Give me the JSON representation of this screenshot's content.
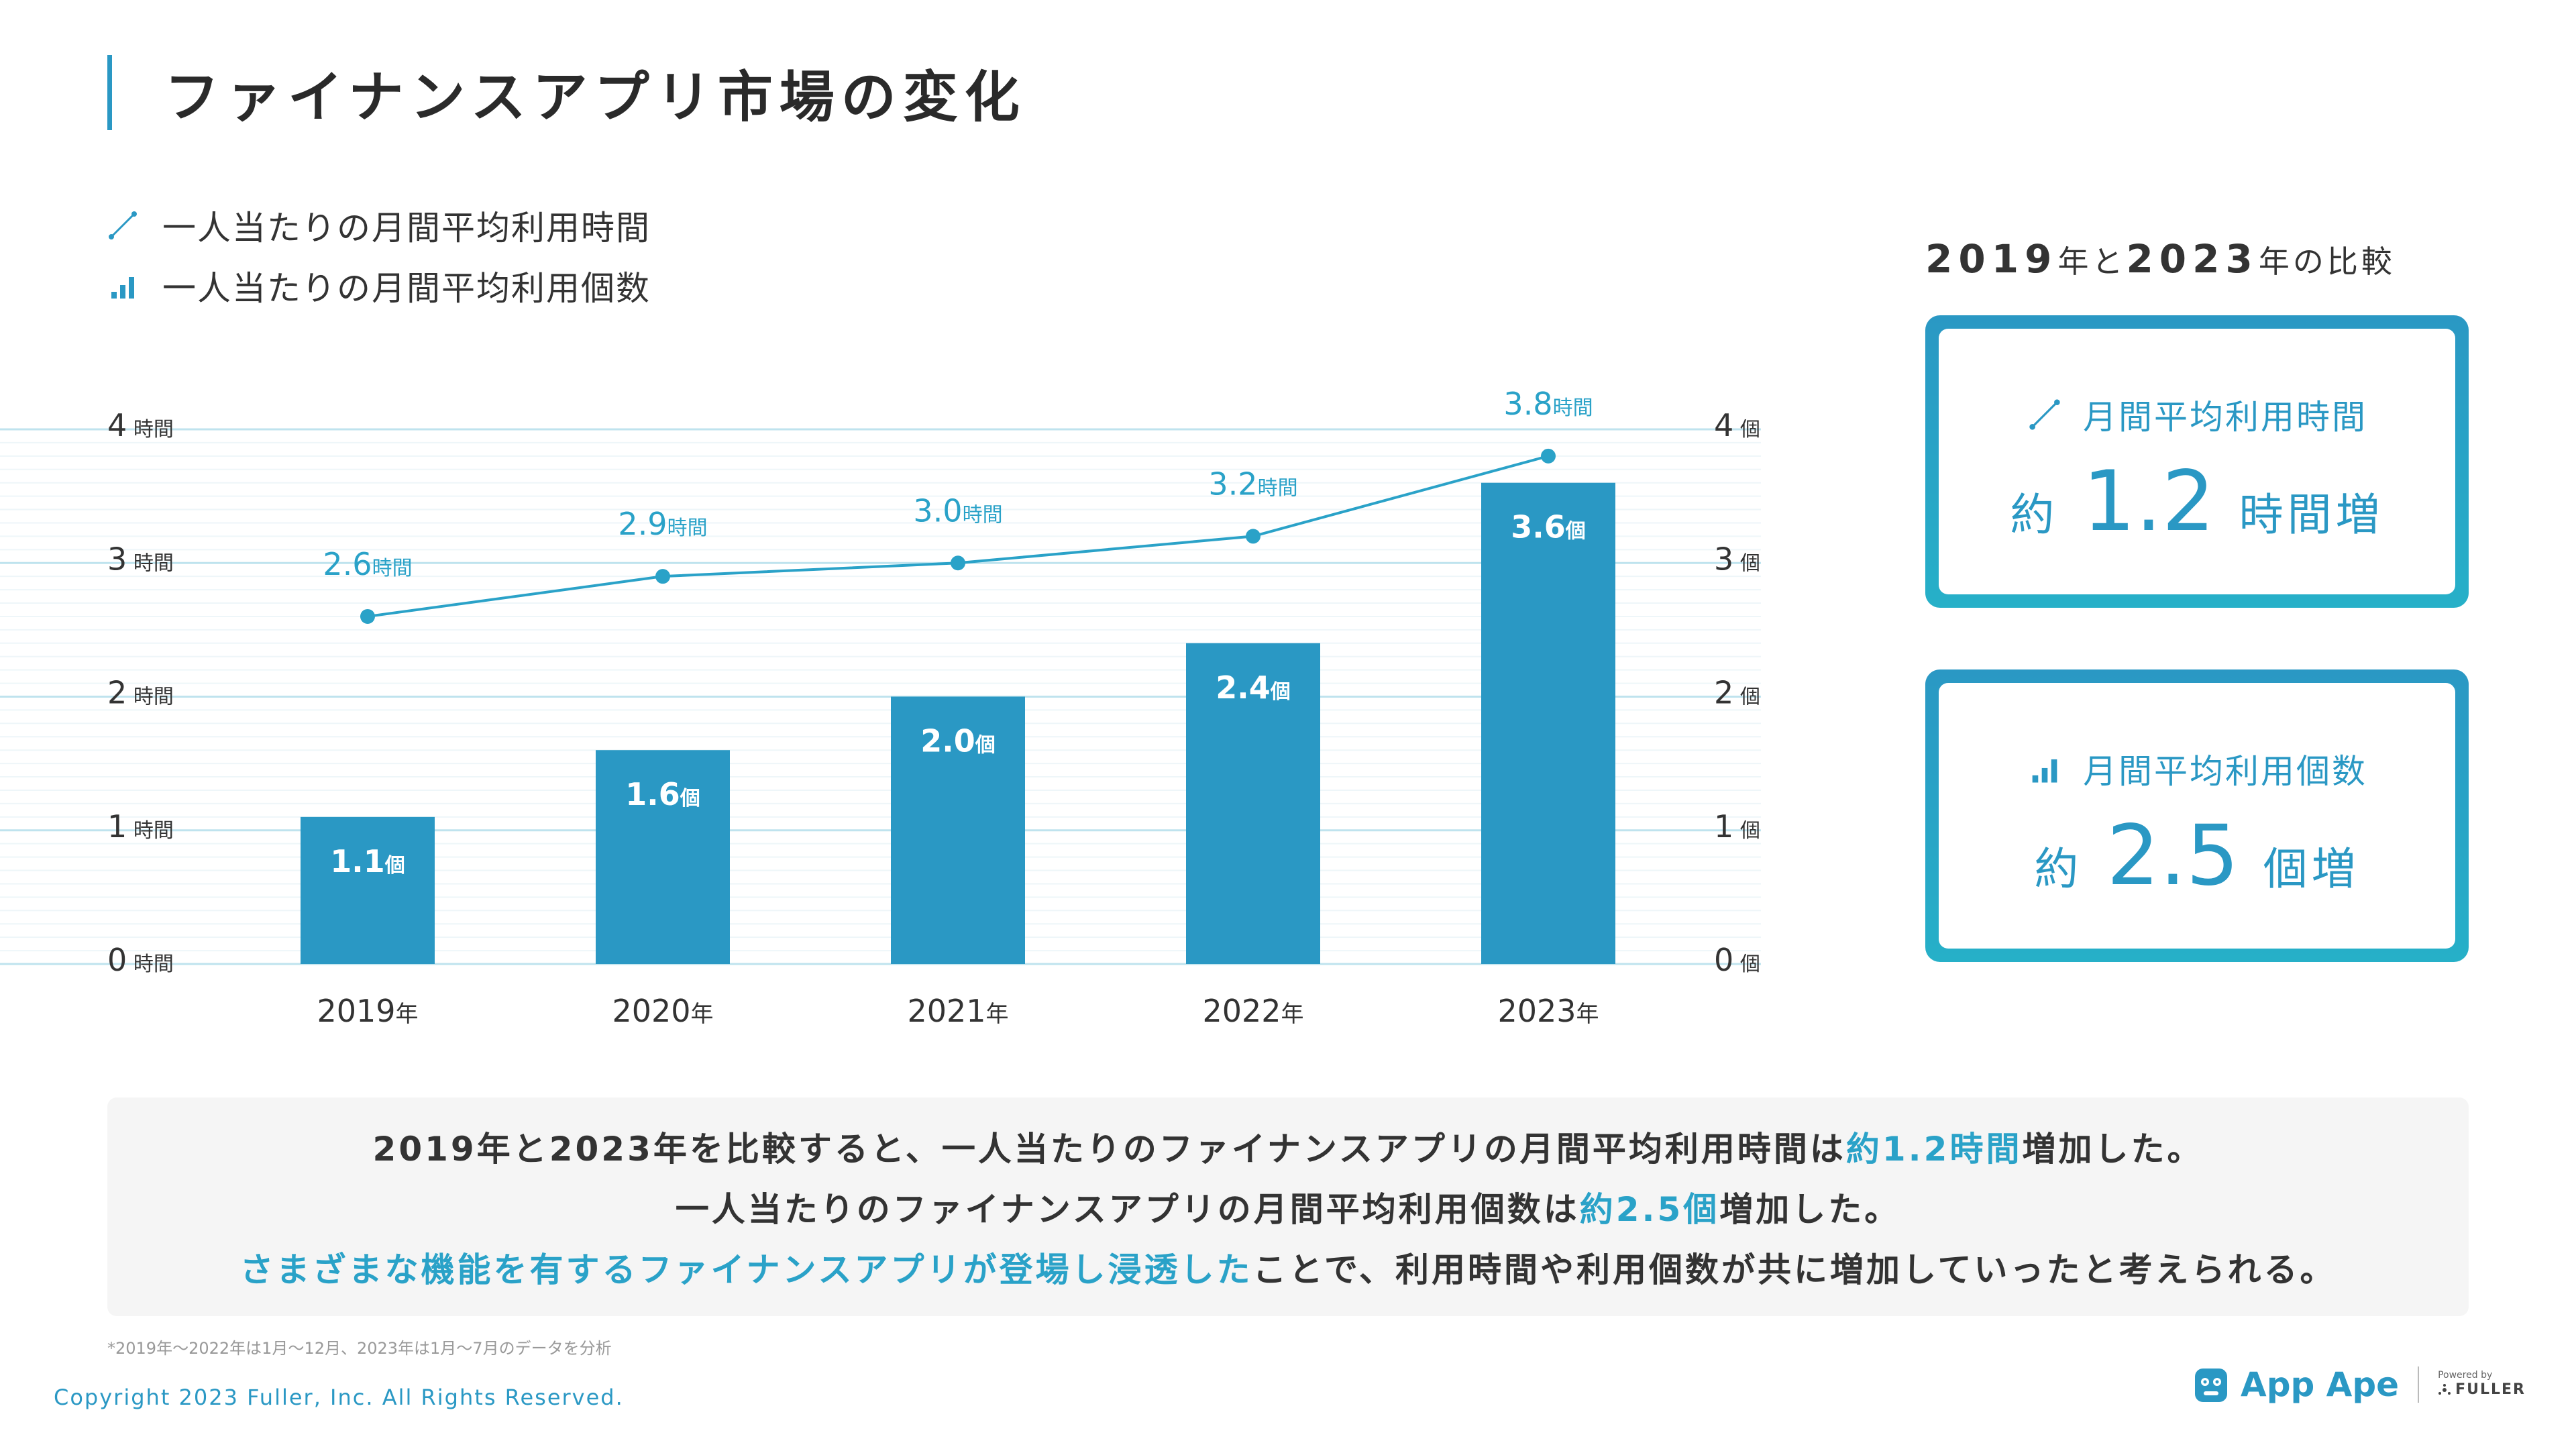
{
  "header": {
    "title": "ファイナンスアプリ市場の変化"
  },
  "legend": {
    "line_label": "一人当たりの月間平均利用時間",
    "bar_label": "一人当たりの月間平均利用個数"
  },
  "comparison": {
    "year_a": "2019",
    "mid_a": "年と",
    "year_b": "2023",
    "mid_b": "年の比較",
    "card_time": {
      "label": "月間平均利用時間",
      "prefix": "約",
      "value": "1.2",
      "suffix": "時間増"
    },
    "card_count": {
      "label": "月間平均利用個数",
      "prefix": "約",
      "value": "2.5",
      "suffix": "個増"
    }
  },
  "summary": {
    "line1_a": "2019年と2023年を比較すると、一人当たりのファイナンスアプリの月間平均利用時間は",
    "line1_hl": "約1.2時間",
    "line1_b": "増加した。",
    "line2_a": "一人当たりのファイナンスアプリの月間平均利用個数は",
    "line2_hl": "約2.5個",
    "line2_b": "増加した。",
    "line3_hl": "さまざまな機能を有するファイナンスアプリが登場し浸透した",
    "line3_b": "ことで、利用時間や利用個数が共に増加していったと考えられる。"
  },
  "footnote": "*2019年〜2022年は1月〜12月、2023年は1月〜7月のデータを分析",
  "footer": {
    "copyright": "Copyright 2023 Fuller, Inc. All Rights Reserved.",
    "brand": "App Ape",
    "powered_by": "Powered by",
    "company": "FULLER"
  },
  "colors": {
    "accent": "#2a98c4",
    "bar": "#2a98c4",
    "line": "#2aa2c8",
    "grid": "#bfe3ee"
  },
  "chart_data": {
    "type": "bar+line",
    "categories": [
      "2019",
      "2020",
      "2021",
      "2022",
      "2023"
    ],
    "category_suffix": "年",
    "series": [
      {
        "name": "一人当たりの月間平均利用個数",
        "kind": "bar",
        "unit": "個",
        "values": [
          1.1,
          1.6,
          2.0,
          2.4,
          3.6
        ]
      },
      {
        "name": "一人当たりの月間平均利用時間",
        "kind": "line",
        "unit": "時間",
        "values": [
          2.6,
          2.9,
          3.0,
          3.2,
          3.8
        ]
      }
    ],
    "y_left": {
      "unit": "時間",
      "ticks": [
        0,
        1,
        2,
        3,
        4
      ],
      "range": [
        0,
        4
      ]
    },
    "y_right": {
      "unit": "個",
      "ticks": [
        0,
        1,
        2,
        3,
        4
      ],
      "range": [
        0,
        4
      ]
    },
    "grid": true
  }
}
